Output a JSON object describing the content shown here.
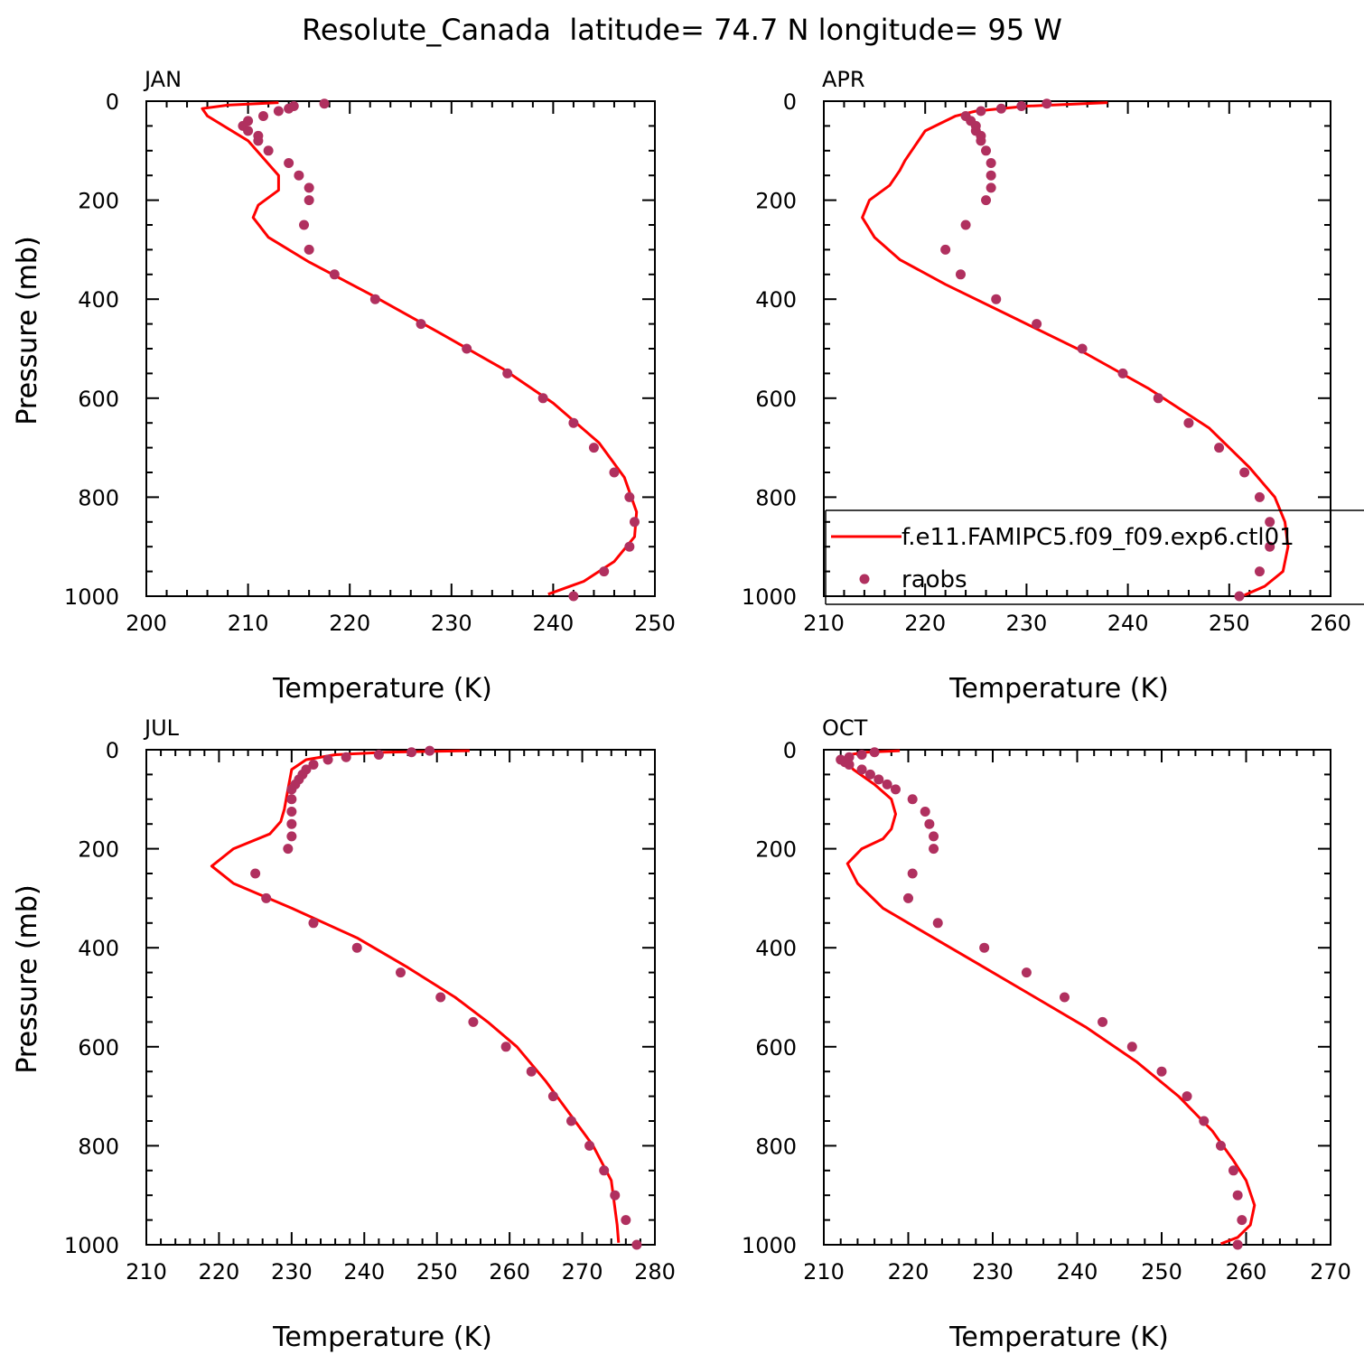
{
  "figure_title": "Resolute_Canada  latitude= 74.7 N longitude= 95 W",
  "colors": {
    "model": "#ff0000",
    "obs": "#b0305f",
    "axis": "#000000"
  },
  "legend": {
    "entries": [
      {
        "label": "f.e11.FAMIPC5.f09_f09.exp6.ctl01",
        "style": "line",
        "color": "#ff0000"
      },
      {
        "label": "raobs",
        "style": "marker",
        "color": "#b0305f"
      }
    ]
  },
  "chart_data": [
    {
      "type": "line",
      "panel": "JAN",
      "title": "JAN",
      "xlabel": "Temperature (K)",
      "ylabel": "Pressure (mb)",
      "xlim": [
        200,
        250
      ],
      "ylim": [
        1000,
        0
      ],
      "xticks": [
        200,
        210,
        220,
        230,
        240,
        250
      ],
      "yticks": [
        0,
        200,
        400,
        600,
        800,
        1000
      ],
      "series": [
        {
          "name": "f.e11.FAMIPC5.f09_f09.exp6.ctl01",
          "style": "line",
          "x": [
            213.0,
            208.0,
            205.5,
            206.0,
            210.0,
            213.0,
            213.0,
            211.0,
            210.5,
            212.0,
            216.0,
            222.0,
            229.0,
            235.0,
            240.0,
            244.5,
            247.0,
            248.2,
            248.0,
            246.0,
            243.0,
            239.5
          ],
          "y": [
            3,
            8,
            15,
            30,
            80,
            150,
            180,
            210,
            235,
            275,
            325,
            390,
            470,
            540,
            610,
            690,
            760,
            830,
            880,
            930,
            970,
            996
          ]
        },
        {
          "name": "raobs",
          "style": "marker",
          "x": [
            217.5,
            214.5,
            213.0,
            214.0,
            211.5,
            210.0,
            209.5,
            210.0,
            211.0,
            211.0,
            212.0,
            214.0,
            215.0,
            216.0,
            216.0,
            215.5,
            216.0,
            218.5,
            222.5,
            227.0,
            231.5,
            235.5,
            239.0,
            242.0,
            244.0,
            246.0,
            247.5,
            248.0,
            247.5,
            245.0,
            242.0
          ],
          "y": [
            5,
            10,
            20,
            15,
            30,
            40,
            50,
            60,
            70,
            80,
            100,
            125,
            150,
            175,
            200,
            250,
            300,
            350,
            400,
            450,
            500,
            550,
            600,
            650,
            700,
            750,
            800,
            850,
            900,
            950,
            1000
          ]
        }
      ]
    },
    {
      "type": "line",
      "panel": "APR",
      "title": "APR",
      "xlabel": "Temperature (K)",
      "ylabel": "Pressure (mb)",
      "xlim": [
        210,
        260
      ],
      "ylim": [
        1000,
        0
      ],
      "xticks": [
        210,
        220,
        230,
        240,
        250,
        260
      ],
      "yticks": [
        0,
        200,
        400,
        600,
        800,
        1000
      ],
      "series": [
        {
          "name": "f.e11.FAMIPC5.f09_f09.exp6.ctl01",
          "style": "line",
          "x": [
            238.0,
            230.0,
            225.0,
            223.0,
            220.0,
            219.0,
            218.0,
            217.5,
            216.5,
            214.5,
            213.8,
            215.0,
            217.5,
            222.0,
            228.0,
            235.0,
            242.0,
            248.0,
            252.0,
            254.5,
            255.5,
            255.8,
            255.3,
            253.5,
            251.5
          ],
          "y": [
            3,
            10,
            20,
            30,
            60,
            90,
            120,
            140,
            170,
            200,
            235,
            275,
            320,
            370,
            430,
            500,
            580,
            660,
            740,
            800,
            850,
            900,
            950,
            980,
            998
          ]
        },
        {
          "name": "raobs",
          "style": "marker",
          "x": [
            232.0,
            229.5,
            227.5,
            225.5,
            224.0,
            224.5,
            225.0,
            225.0,
            225.5,
            225.5,
            226.0,
            226.5,
            226.5,
            226.5,
            226.0,
            224.0,
            222.0,
            223.5,
            227.0,
            231.0,
            235.5,
            239.5,
            243.0,
            246.0,
            249.0,
            251.5,
            253.0,
            254.0,
            254.0,
            253.0,
            251.0
          ],
          "y": [
            5,
            10,
            15,
            20,
            30,
            40,
            50,
            60,
            70,
            80,
            100,
            125,
            150,
            175,
            200,
            250,
            300,
            350,
            400,
            450,
            500,
            550,
            600,
            650,
            700,
            750,
            800,
            850,
            900,
            950,
            1000
          ]
        }
      ]
    },
    {
      "type": "line",
      "panel": "JUL",
      "title": "JUL",
      "xlabel": "Temperature (K)",
      "ylabel": "Pressure (mb)",
      "xlim": [
        210,
        280
      ],
      "ylim": [
        1000,
        0
      ],
      "xticks": [
        210,
        220,
        230,
        240,
        250,
        260,
        270,
        280
      ],
      "yticks": [
        0,
        200,
        400,
        600,
        800,
        1000
      ],
      "series": [
        {
          "name": "f.e11.FAMIPC5.f09_f09.exp6.ctl01",
          "style": "line",
          "x": [
            254.5,
            243.0,
            236.0,
            232.0,
            230.0,
            229.5,
            229.0,
            228.5,
            227.0,
            222.0,
            219.0,
            222.0,
            230.0,
            239.0,
            246.0,
            252.5,
            257.0,
            261.0,
            265.0,
            268.5,
            271.5,
            274.0,
            274.8,
            275.0
          ],
          "y": [
            2,
            5,
            10,
            20,
            40,
            80,
            120,
            145,
            170,
            200,
            235,
            270,
            320,
            380,
            440,
            500,
            550,
            600,
            670,
            740,
            800,
            870,
            960,
            996
          ]
        },
        {
          "name": "raobs",
          "style": "marker",
          "x": [
            249.0,
            246.5,
            242.0,
            237.5,
            235.0,
            233.0,
            232.0,
            231.5,
            231.0,
            230.5,
            230.0,
            230.0,
            230.0,
            230.0,
            230.0,
            229.5,
            225.0,
            226.5,
            233.0,
            239.0,
            245.0,
            250.5,
            255.0,
            259.5,
            263.0,
            266.0,
            268.5,
            271.0,
            273.0,
            274.5,
            276.0,
            277.5
          ],
          "y": [
            2,
            5,
            10,
            15,
            20,
            30,
            40,
            50,
            60,
            70,
            80,
            100,
            125,
            150,
            175,
            200,
            250,
            300,
            350,
            400,
            450,
            500,
            550,
            600,
            650,
            700,
            750,
            800,
            850,
            900,
            950,
            1000
          ]
        }
      ]
    },
    {
      "type": "line",
      "panel": "OCT",
      "title": "OCT",
      "xlabel": "Temperature (K)",
      "ylabel": "Pressure (mb)",
      "xlim": [
        210,
        270
      ],
      "ylim": [
        1000,
        0
      ],
      "xticks": [
        210,
        220,
        230,
        240,
        250,
        260,
        270
      ],
      "yticks": [
        0,
        200,
        400,
        600,
        800,
        1000
      ],
      "series": [
        {
          "name": "f.e11.FAMIPC5.f09_f09.exp6.ctl01",
          "style": "line",
          "x": [
            219.0,
            215.0,
            213.0,
            212.5,
            213.5,
            216.0,
            218.0,
            218.5,
            218.0,
            217.0,
            214.5,
            212.8,
            214.0,
            217.0,
            222.0,
            228.0,
            235.0,
            241.0,
            247.0,
            252.0,
            256.0,
            258.5,
            260.0,
            261.0,
            260.5,
            259.0,
            257.0
          ],
          "y": [
            2,
            5,
            10,
            20,
            40,
            70,
            100,
            130,
            160,
            180,
            200,
            230,
            270,
            320,
            370,
            430,
            500,
            560,
            630,
            700,
            770,
            830,
            870,
            920,
            960,
            985,
            998
          ]
        },
        {
          "name": "raobs",
          "style": "marker",
          "x": [
            216.0,
            214.5,
            213.0,
            212.0,
            212.5,
            213.0,
            214.5,
            215.5,
            216.5,
            217.5,
            218.5,
            220.5,
            222.0,
            222.5,
            223.0,
            223.0,
            220.5,
            220.0,
            223.5,
            229.0,
            234.0,
            238.5,
            243.0,
            246.5,
            250.0,
            253.0,
            255.0,
            257.0,
            258.5,
            259.0,
            259.5,
            259.0
          ],
          "y": [
            5,
            10,
            15,
            20,
            25,
            30,
            40,
            50,
            60,
            70,
            80,
            100,
            125,
            150,
            175,
            200,
            250,
            300,
            350,
            400,
            450,
            500,
            550,
            600,
            650,
            700,
            750,
            800,
            850,
            900,
            950,
            1000
          ]
        }
      ]
    }
  ]
}
